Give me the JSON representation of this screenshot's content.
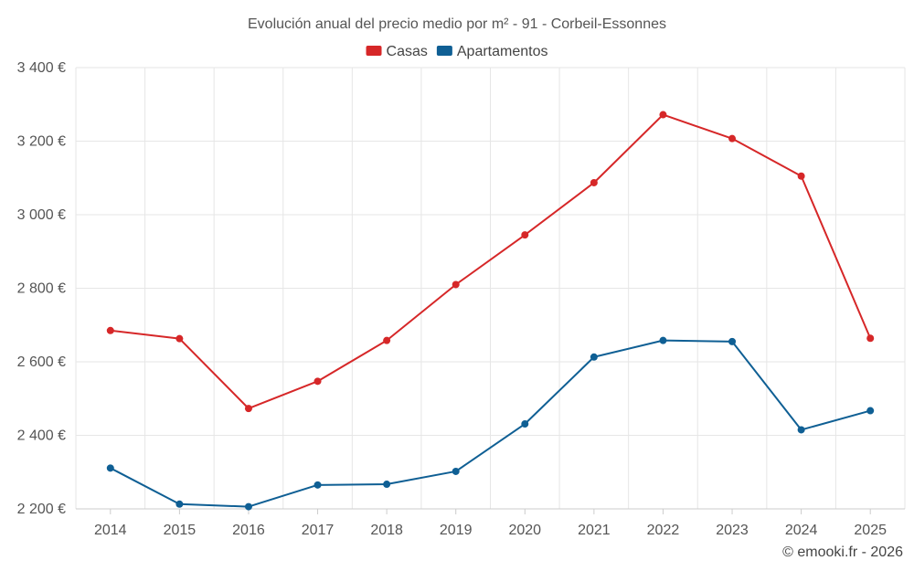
{
  "chart_data": {
    "type": "line",
    "title": "Evolución anual del precio medio por m² - 91 - Corbeil-Essonnes",
    "categories": [
      "2014",
      "2015",
      "2016",
      "2017",
      "2018",
      "2019",
      "2020",
      "2021",
      "2022",
      "2023",
      "2024",
      "2025"
    ],
    "series": [
      {
        "name": "Casas",
        "color": "#d62728",
        "values": [
          2685,
          2663,
          2473,
          2547,
          2658,
          2810,
          2945,
          3087,
          3272,
          3207,
          3105,
          2664
        ]
      },
      {
        "name": "Apartamentos",
        "color": "#0f5f94",
        "values": [
          2311,
          2213,
          2206,
          2265,
          2267,
          2302,
          2431,
          2613,
          2658,
          2655,
          2415,
          2467
        ]
      }
    ],
    "ylim": [
      2200,
      3400
    ],
    "yticks": [
      2200,
      2400,
      2600,
      2800,
      3000,
      3200,
      3400
    ],
    "ytick_labels": [
      "2 200 €",
      "2 400 €",
      "2 600 €",
      "2 800 €",
      "3 000 €",
      "3 200 €",
      "3 400 €"
    ],
    "grid": true,
    "legend": "top-center",
    "xlabel": "",
    "ylabel": ""
  },
  "footer": {
    "credit": "© emooki.fr - 2026"
  }
}
